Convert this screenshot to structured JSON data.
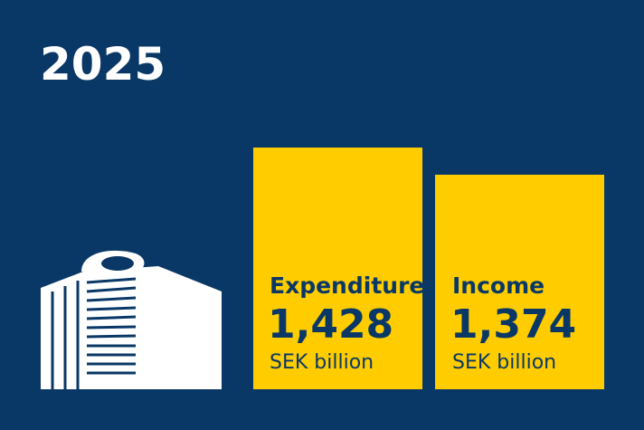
{
  "title": "2025",
  "items": [
    {
      "label": "Expenditure",
      "value": "1,428",
      "unit": "SEK billion"
    },
    {
      "label": "Income",
      "value": "1,374",
      "unit": "SEK billion"
    }
  ]
}
